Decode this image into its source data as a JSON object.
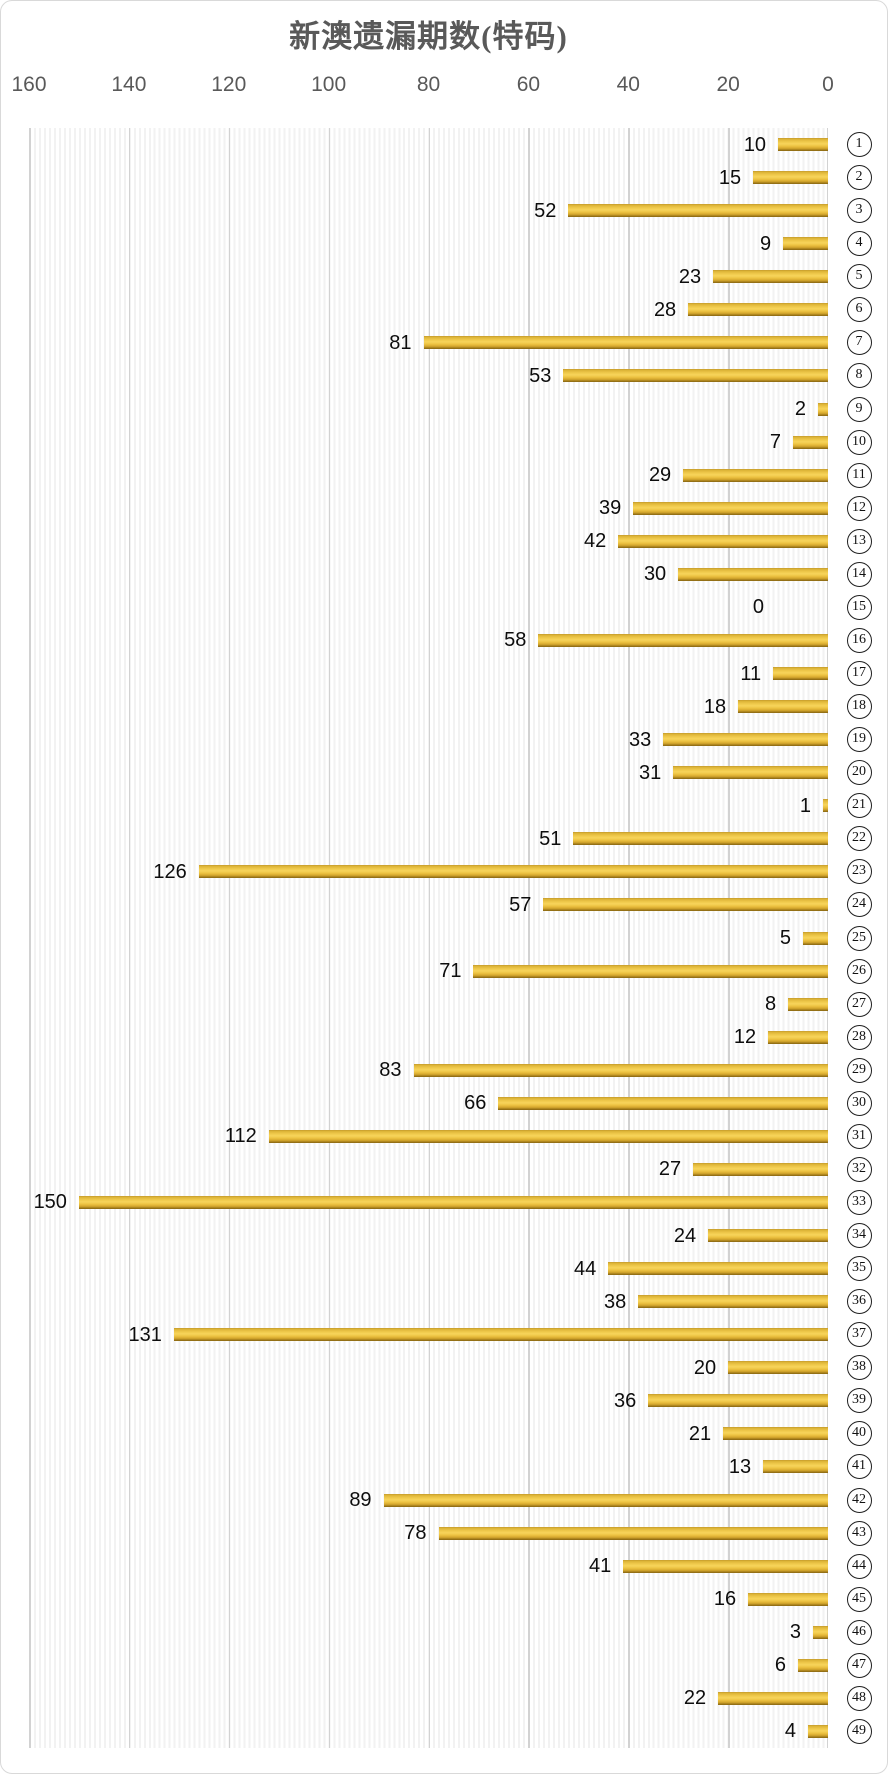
{
  "colors": {
    "bar_main": "#eec84a",
    "bar_edge_dark": "#8a6812",
    "axis_text": "#595959",
    "data_label_text": "#0d0d0d",
    "gridline": "#d2d2d2",
    "plot_stripe": "#f2f2f2",
    "chart_border": "#d9d9d9",
    "background": "#ffffff"
  },
  "chart_data": {
    "type": "bar",
    "orientation": "horizontal",
    "title": "新澳遗漏期数(特码)",
    "legend": "none",
    "grid": true,
    "data_labels": "outside-end",
    "value_axis": {
      "position": "top",
      "min": 0,
      "max": 160,
      "tick_interval": 20,
      "reversed": true,
      "ticks": [
        160,
        140,
        120,
        100,
        80,
        60,
        40,
        20,
        0
      ]
    },
    "category_axis": {
      "position": "right",
      "style": "circled-numbers"
    },
    "categories": [
      1,
      2,
      3,
      4,
      5,
      6,
      7,
      8,
      9,
      10,
      11,
      12,
      13,
      14,
      15,
      16,
      17,
      18,
      19,
      20,
      21,
      22,
      23,
      24,
      25,
      26,
      27,
      28,
      29,
      30,
      31,
      32,
      33,
      34,
      35,
      36,
      37,
      38,
      39,
      40,
      41,
      42,
      43,
      44,
      45,
      46,
      47,
      48,
      49
    ],
    "values": [
      10,
      15,
      52,
      9,
      23,
      28,
      81,
      53,
      2,
      7,
      29,
      39,
      42,
      30,
      0,
      58,
      11,
      18,
      33,
      31,
      1,
      51,
      126,
      57,
      5,
      71,
      8,
      12,
      83,
      66,
      112,
      27,
      150,
      24,
      44,
      38,
      131,
      20,
      36,
      21,
      13,
      89,
      78,
      41,
      16,
      3,
      6,
      22,
      4
    ]
  }
}
